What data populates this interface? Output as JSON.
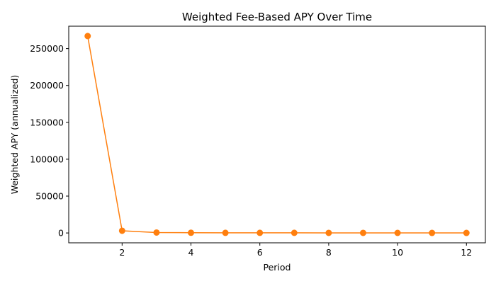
{
  "chart_data": {
    "type": "line",
    "title": "Weighted Fee-Based APY Over Time",
    "xlabel": "Period",
    "ylabel": "Weighted APY (annualized)",
    "x": [
      1,
      2,
      3,
      4,
      5,
      6,
      7,
      8,
      9,
      10,
      11,
      12
    ],
    "series": [
      {
        "values": [
          267000,
          3000,
          600,
          300,
          200,
          200,
          150,
          120,
          100,
          90,
          80,
          70
        ],
        "color": "#ff7f0e"
      }
    ],
    "xlim": [
      0.45,
      12.55
    ],
    "ylim": [
      -13350,
      280350
    ],
    "xticks": [
      2,
      4,
      6,
      8,
      10,
      12
    ],
    "yticks": [
      0,
      50000,
      100000,
      150000,
      200000,
      250000
    ],
    "grid": false,
    "legend": "none"
  }
}
